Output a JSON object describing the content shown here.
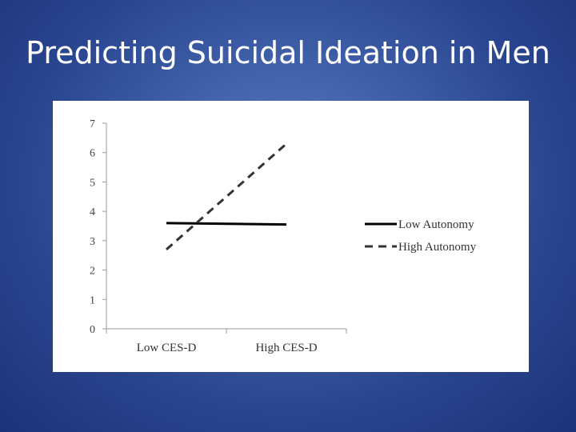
{
  "slide": {
    "title": "Predicting Suicidal Ideation in Men",
    "background_color": "#3a5aa4"
  },
  "chart_data": {
    "type": "line",
    "title": "",
    "xlabel": "",
    "ylabel": "",
    "categories": [
      "Low CES-D",
      "High CES-D"
    ],
    "ylim": [
      0,
      7
    ],
    "yticks": [
      "0",
      "1",
      "2",
      "3",
      "4",
      "5",
      "6",
      "7"
    ],
    "series": [
      {
        "name": "Low Autonomy",
        "values": [
          3.6,
          3.55
        ],
        "style": "solid",
        "color": "#000000"
      },
      {
        "name": "High Autonomy",
        "values": [
          2.7,
          6.3
        ],
        "style": "dashed",
        "color": "#333333"
      }
    ],
    "legend_position": "right",
    "grid": false
  }
}
